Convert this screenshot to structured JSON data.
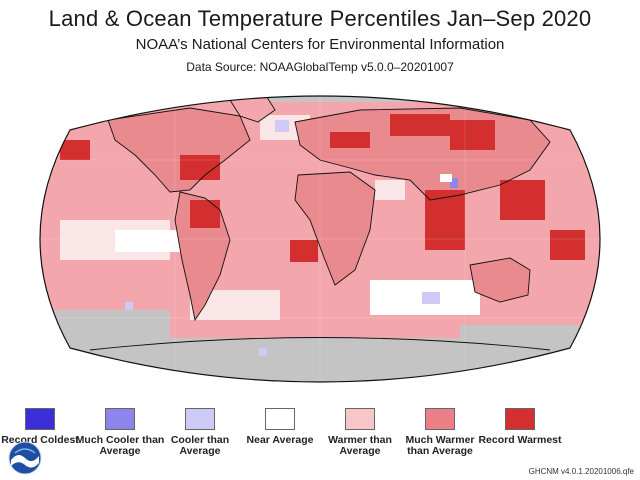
{
  "header": {
    "title": "Land & Ocean Temperature Percentiles Jan–Sep 2020",
    "subtitle": "NOAA’s National Centers for Environmental Information",
    "source": "Data Source: NOAAGlobalTemp v5.0.0–20201007"
  },
  "legend": [
    {
      "label": "Record Coldest",
      "color": "#3b2fd9"
    },
    {
      "label": "Much Cooler than Average",
      "color": "#8d86ea"
    },
    {
      "label": "Cooler than Average",
      "color": "#cdcaf5"
    },
    {
      "label": "Near Average",
      "color": "#ffffff"
    },
    {
      "label": "Warmer than Average",
      "color": "#f8c5c8"
    },
    {
      "label": "Much Warmer than Average",
      "color": "#ea8085"
    },
    {
      "label": "Record Warmest",
      "color": "#d32f2f"
    }
  ],
  "map": {
    "land_color": "#e98a8f",
    "missing_color": "#c4c4c4",
    "outline_color": "#111111"
  },
  "footer": {
    "logo_text": "NOAA",
    "version": "GHCNM v4.0.1.20201006.qfe"
  }
}
